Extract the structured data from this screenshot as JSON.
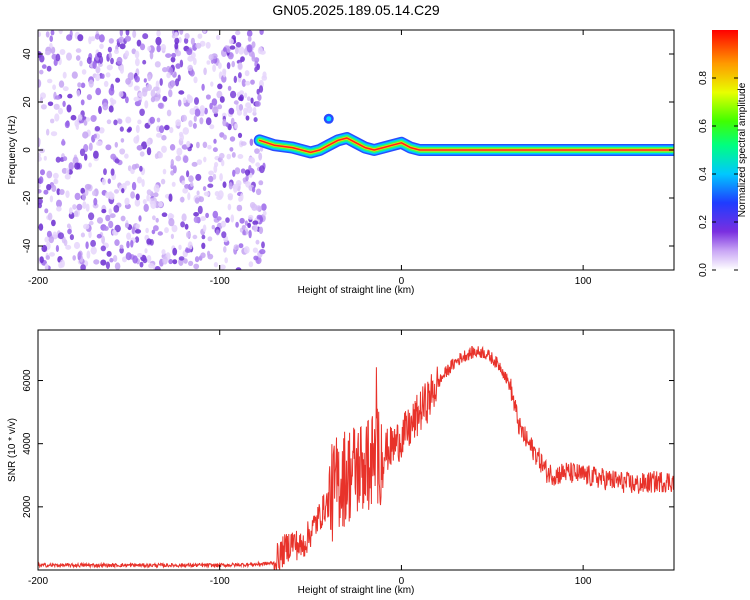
{
  "title": "GN05.2025.189.05.14.C29",
  "colors": {
    "snr_line": "#e8322a",
    "noise_purple": "#7a3fd8",
    "ridge_red": "#ff2020"
  },
  "chart_data": [
    {
      "type": "heatmap",
      "name": "spectrogram",
      "xlabel": "Height of straight line (km)",
      "ylabel": "Frequency (Hz)",
      "xlim": [
        -200,
        150
      ],
      "ylim": [
        -50,
        50
      ],
      "xticks": [
        -200,
        -100,
        0,
        100
      ],
      "yticks": [
        -40,
        -20,
        0,
        20,
        40
      ],
      "colorbar": {
        "label": "Normalized spectral amplitude",
        "range": [
          0,
          1
        ],
        "ticks": [
          "0.0",
          "0.2",
          "0.4",
          "0.6",
          "0.8"
        ],
        "colormap": "rainbow"
      },
      "noise_region_x": [
        -200,
        -75
      ],
      "ridge": {
        "x": [
          -78,
          -70,
          -60,
          -50,
          -45,
          -40,
          -35,
          -30,
          -25,
          -20,
          -15,
          -10,
          -5,
          0,
          5,
          10,
          20,
          40,
          60,
          80,
          100,
          120,
          150
        ],
        "freq": [
          4,
          2,
          1,
          -1,
          0,
          2,
          4,
          5,
          3,
          1,
          0,
          1,
          2,
          3,
          1,
          0,
          0,
          0,
          0,
          0,
          0,
          0,
          0
        ]
      },
      "spot": {
        "x": -40,
        "freq": 13
      }
    },
    {
      "type": "line",
      "name": "snr",
      "xlabel": "Height of straight line (km)",
      "ylabel": "SNR (10 * v/v)",
      "xlim": [
        -200,
        150
      ],
      "ylim": [
        0,
        7600
      ],
      "xticks": [
        -200,
        -100,
        0,
        100
      ],
      "yticks": [
        2000,
        4000,
        6000
      ],
      "x": [
        -200,
        -150,
        -100,
        -80,
        -70,
        -65,
        -60,
        -55,
        -50,
        -45,
        -40,
        -35,
        -30,
        -25,
        -20,
        -15,
        -10,
        -5,
        0,
        5,
        10,
        15,
        20,
        25,
        30,
        35,
        40,
        45,
        50,
        55,
        60,
        65,
        70,
        75,
        80,
        85,
        90,
        100,
        110,
        120,
        130,
        140,
        150
      ],
      "y": [
        150,
        150,
        150,
        180,
        220,
        600,
        900,
        700,
        1200,
        1700,
        2200,
        2800,
        3000,
        3200,
        3300,
        3500,
        3700,
        3900,
        4200,
        4500,
        5000,
        5400,
        5900,
        6300,
        6600,
        6800,
        6900,
        6900,
        6700,
        6400,
        5800,
        4500,
        4000,
        3600,
        3100,
        3000,
        3100,
        3000,
        2900,
        2800,
        2700,
        2800,
        2800
      ]
    }
  ]
}
